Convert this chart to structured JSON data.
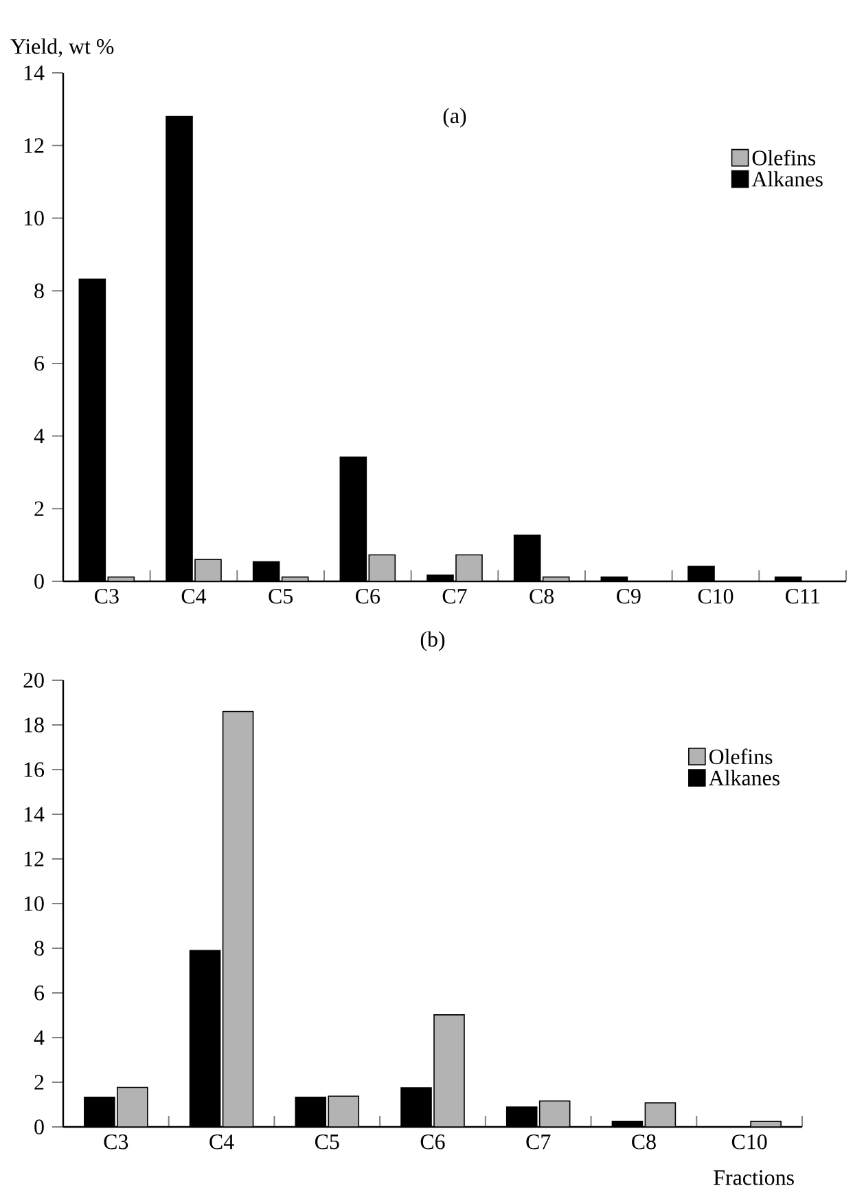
{
  "chart_data": [
    {
      "type": "bar",
      "title": "(a)",
      "ylabel": "Yield, wt %",
      "categories": [
        "C3",
        "C4",
        "C5",
        "C6",
        "C7",
        "C8",
        "C9",
        "C10",
        "C11"
      ],
      "ylim": [
        0,
        14
      ],
      "yticks": [
        0,
        2,
        4,
        6,
        8,
        10,
        12,
        14
      ],
      "legend": "top right",
      "grid": false,
      "series": [
        {
          "name": "Alkanes",
          "color": "#000000",
          "values": [
            8.32,
            12.8,
            0.54,
            3.42,
            0.17,
            1.27,
            0.12,
            0.41,
            0.12
          ]
        },
        {
          "name": "Olefins",
          "color": "#b3b3b3",
          "values": [
            0.12,
            0.6,
            0.12,
            0.73,
            0.73,
            0.12,
            null,
            null,
            null
          ]
        }
      ]
    },
    {
      "type": "bar",
      "title": "(b)",
      "xlabel": "Fractions",
      "categories": [
        "C3",
        "C4",
        "C5",
        "C6",
        "C7",
        "C8",
        "C10"
      ],
      "ylim": [
        0,
        20
      ],
      "yticks": [
        0,
        2,
        4,
        6,
        8,
        10,
        12,
        14,
        16,
        18,
        20
      ],
      "legend": "top right",
      "grid": false,
      "series": [
        {
          "name": "Alkanes",
          "color": "#000000",
          "values": [
            1.33,
            7.9,
            1.33,
            1.75,
            0.89,
            0.25,
            null
          ]
        },
        {
          "name": "Olefins",
          "color": "#b3b3b3",
          "values": [
            1.77,
            18.6,
            1.38,
            5.02,
            1.16,
            1.08,
            0.25
          ]
        }
      ]
    }
  ]
}
